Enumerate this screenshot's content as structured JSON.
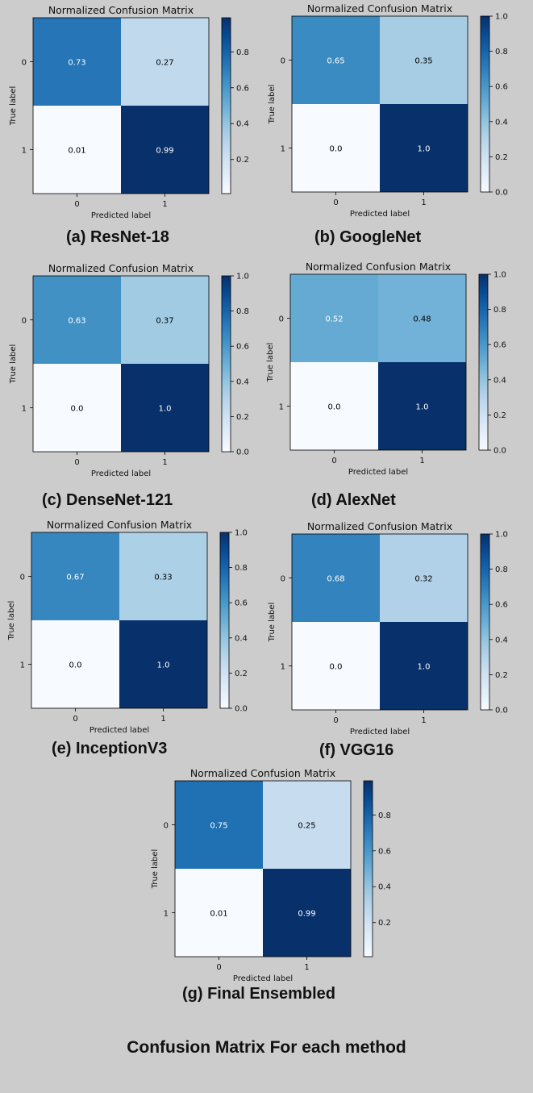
{
  "figure_title": "Confusion Matrix For each method",
  "chart_data": [
    {
      "type": "heatmap",
      "title": "Normalized Confusion Matrix",
      "caption": "(a) ResNet-18",
      "xlabel": "Predicted label",
      "ylabel": "True label",
      "x_ticks": [
        "0",
        "1"
      ],
      "y_ticks": [
        "0",
        "1"
      ],
      "values": [
        [
          0.73,
          0.27
        ],
        [
          0.01,
          0.99
        ]
      ],
      "cell_labels": [
        [
          "0.73",
          "0.27"
        ],
        [
          "0.01",
          "0.99"
        ]
      ],
      "colormap": "Blues",
      "colorbar_range": [
        0.01,
        0.99
      ],
      "colorbar_ticks": [
        "0.2",
        "0.4",
        "0.6",
        "0.8"
      ]
    },
    {
      "type": "heatmap",
      "title": "Normalized Confusion Matrix",
      "caption": "(b) GoogleNet",
      "xlabel": "Predicted label",
      "ylabel": "True label",
      "x_ticks": [
        "0",
        "1"
      ],
      "y_ticks": [
        "0",
        "1"
      ],
      "values": [
        [
          0.65,
          0.35
        ],
        [
          0.0,
          1.0
        ]
      ],
      "cell_labels": [
        [
          "0.65",
          "0.35"
        ],
        [
          "0.0",
          "1.0"
        ]
      ],
      "colormap": "Blues",
      "colorbar_range": [
        0.0,
        1.0
      ],
      "colorbar_ticks": [
        "0.0",
        "0.2",
        "0.4",
        "0.6",
        "0.8",
        "1.0"
      ]
    },
    {
      "type": "heatmap",
      "title": "Normalized Confusion Matrix",
      "caption": "(c) DenseNet-121",
      "xlabel": "Predicted label",
      "ylabel": "True label",
      "x_ticks": [
        "0",
        "1"
      ],
      "y_ticks": [
        "0",
        "1"
      ],
      "values": [
        [
          0.63,
          0.37
        ],
        [
          0.0,
          1.0
        ]
      ],
      "cell_labels": [
        [
          "0.63",
          "0.37"
        ],
        [
          "0.0",
          "1.0"
        ]
      ],
      "colormap": "Blues",
      "colorbar_range": [
        0.0,
        1.0
      ],
      "colorbar_ticks": [
        "0.0",
        "0.2",
        "0.4",
        "0.6",
        "0.8",
        "1.0"
      ]
    },
    {
      "type": "heatmap",
      "title": "Normalized Confusion Matrix",
      "caption": "(d) AlexNet",
      "xlabel": "Predicted label",
      "ylabel": "True label",
      "x_ticks": [
        "0",
        "1"
      ],
      "y_ticks": [
        "0",
        "1"
      ],
      "values": [
        [
          0.52,
          0.48
        ],
        [
          0.0,
          1.0
        ]
      ],
      "cell_labels": [
        [
          "0.52",
          "0.48"
        ],
        [
          "0.0",
          "1.0"
        ]
      ],
      "colormap": "Blues",
      "colorbar_range": [
        0.0,
        1.0
      ],
      "colorbar_ticks": [
        "0.0",
        "0.2",
        "0.4",
        "0.6",
        "0.8",
        "1.0"
      ]
    },
    {
      "type": "heatmap",
      "title": "Normalized Confusion Matrix",
      "caption": "(e) InceptionV3",
      "xlabel": "Predicted label",
      "ylabel": "True label",
      "x_ticks": [
        "0",
        "1"
      ],
      "y_ticks": [
        "0",
        "1"
      ],
      "values": [
        [
          0.67,
          0.33
        ],
        [
          0.0,
          1.0
        ]
      ],
      "cell_labels": [
        [
          "0.67",
          "0.33"
        ],
        [
          "0.0",
          "1.0"
        ]
      ],
      "colormap": "Blues",
      "colorbar_range": [
        0.0,
        1.0
      ],
      "colorbar_ticks": [
        "0.0",
        "0.2",
        "0.4",
        "0.6",
        "0.8",
        "1.0"
      ]
    },
    {
      "type": "heatmap",
      "title": "Normalized Confusion Matrix",
      "caption": "(f) VGG16",
      "xlabel": "Predicted label",
      "ylabel": "True label",
      "x_ticks": [
        "0",
        "1"
      ],
      "y_ticks": [
        "0",
        "1"
      ],
      "values": [
        [
          0.68,
          0.32
        ],
        [
          0.0,
          1.0
        ]
      ],
      "cell_labels": [
        [
          "0.68",
          "0.32"
        ],
        [
          "0.0",
          "1.0"
        ]
      ],
      "colormap": "Blues",
      "colorbar_range": [
        0.0,
        1.0
      ],
      "colorbar_ticks": [
        "0.0",
        "0.2",
        "0.4",
        "0.6",
        "0.8",
        "1.0"
      ]
    },
    {
      "type": "heatmap",
      "title": "Normalized Confusion Matrix",
      "caption": "(g) Final Ensembled",
      "xlabel": "Predicted label",
      "ylabel": "True label",
      "x_ticks": [
        "0",
        "1"
      ],
      "y_ticks": [
        "0",
        "1"
      ],
      "values": [
        [
          0.75,
          0.25
        ],
        [
          0.01,
          0.99
        ]
      ],
      "cell_labels": [
        [
          "0.75",
          "0.25"
        ],
        [
          "0.01",
          "0.99"
        ]
      ],
      "colormap": "Blues",
      "colorbar_range": [
        0.01,
        0.99
      ],
      "colorbar_ticks": [
        "0.2",
        "0.4",
        "0.6",
        "0.8"
      ]
    }
  ]
}
